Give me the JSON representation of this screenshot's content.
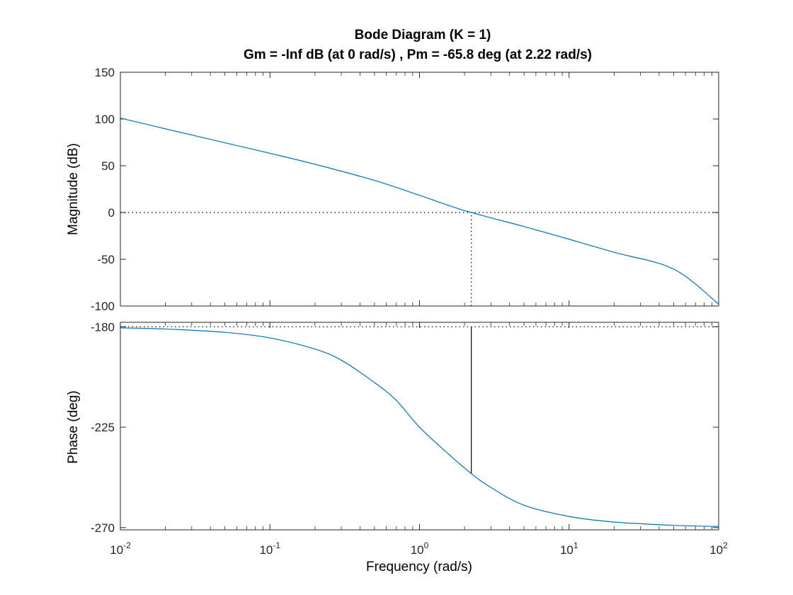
{
  "chart_data": {
    "type": "line",
    "title": "Bode Diagram (K = 1)",
    "subtitle": "Gm = -Inf dB (at 0 rad/s) ,  Pm = -65.8 deg (at 2.22 rad/s)",
    "xlabel": "Frequency  (rad/s)",
    "xscale": "log",
    "xlim": [
      0.01,
      100
    ],
    "xticks": [
      0.01,
      0.1,
      1,
      10,
      100
    ],
    "xtick_labels": [
      {
        "base": "10",
        "exp": "-2"
      },
      {
        "base": "10",
        "exp": "-1"
      },
      {
        "base": "10",
        "exp": "0"
      },
      {
        "base": "10",
        "exp": "1"
      },
      {
        "base": "10",
        "exp": "2"
      }
    ],
    "line_color": "#0072BD",
    "panels": [
      {
        "name": "magnitude",
        "ylabel": "Magnitude (dB)",
        "ylim": [
          -100,
          150
        ],
        "yticks": [
          -100,
          -50,
          0,
          50,
          100,
          150
        ],
        "ytick_labels": [
          "-100",
          "-50",
          "0",
          "50",
          "100",
          "150"
        ],
        "grid": false,
        "series": [
          {
            "x": [
              0.01,
              0.02,
              0.05,
              0.1,
              0.2,
              0.5,
              1,
              1.5,
              2,
              2.22,
              3,
              5,
              10,
              20,
              50,
              100
            ],
            "values": [
              101,
              89.5,
              74.6,
              63.3,
              51.6,
              34.3,
              18.4,
              8.6,
              2.0,
              0.0,
              -5.7,
              -15.0,
              -28.6,
              -42.6,
              -60.5,
              -98
            ]
          }
        ],
        "reference_line": {
          "y": 0,
          "style": "dotted"
        },
        "marker_line": {
          "x": 2.22,
          "y_from": -100,
          "y_to": 0,
          "style": "dotted"
        }
      },
      {
        "name": "phase",
        "ylabel": "Phase (deg)",
        "ylim": [
          -271,
          -178
        ],
        "yticks": [
          -270,
          -225,
          -180
        ],
        "ytick_labels": [
          "-270",
          "-225",
          "-180"
        ],
        "grid": false,
        "series": [
          {
            "x": [
              0.01,
              0.02,
              0.05,
              0.1,
              0.2,
              0.3,
              0.5,
              0.7,
              1,
              1.5,
              2.22,
              3,
              5,
              10,
              20,
              50,
              100
            ],
            "values": [
              -180.5,
              -181,
              -182.5,
              -185,
              -190,
              -195,
              -205,
              -213,
              -225,
              -236,
              -245.8,
              -252,
              -260,
              -265,
              -267.5,
              -269,
              -269.5
            ]
          }
        ],
        "reference_line": {
          "y": -180,
          "style": "dotted"
        },
        "marker_line": {
          "x": 2.22,
          "y_from": -180,
          "y_to": -245.8,
          "style": "solid"
        }
      }
    ]
  }
}
